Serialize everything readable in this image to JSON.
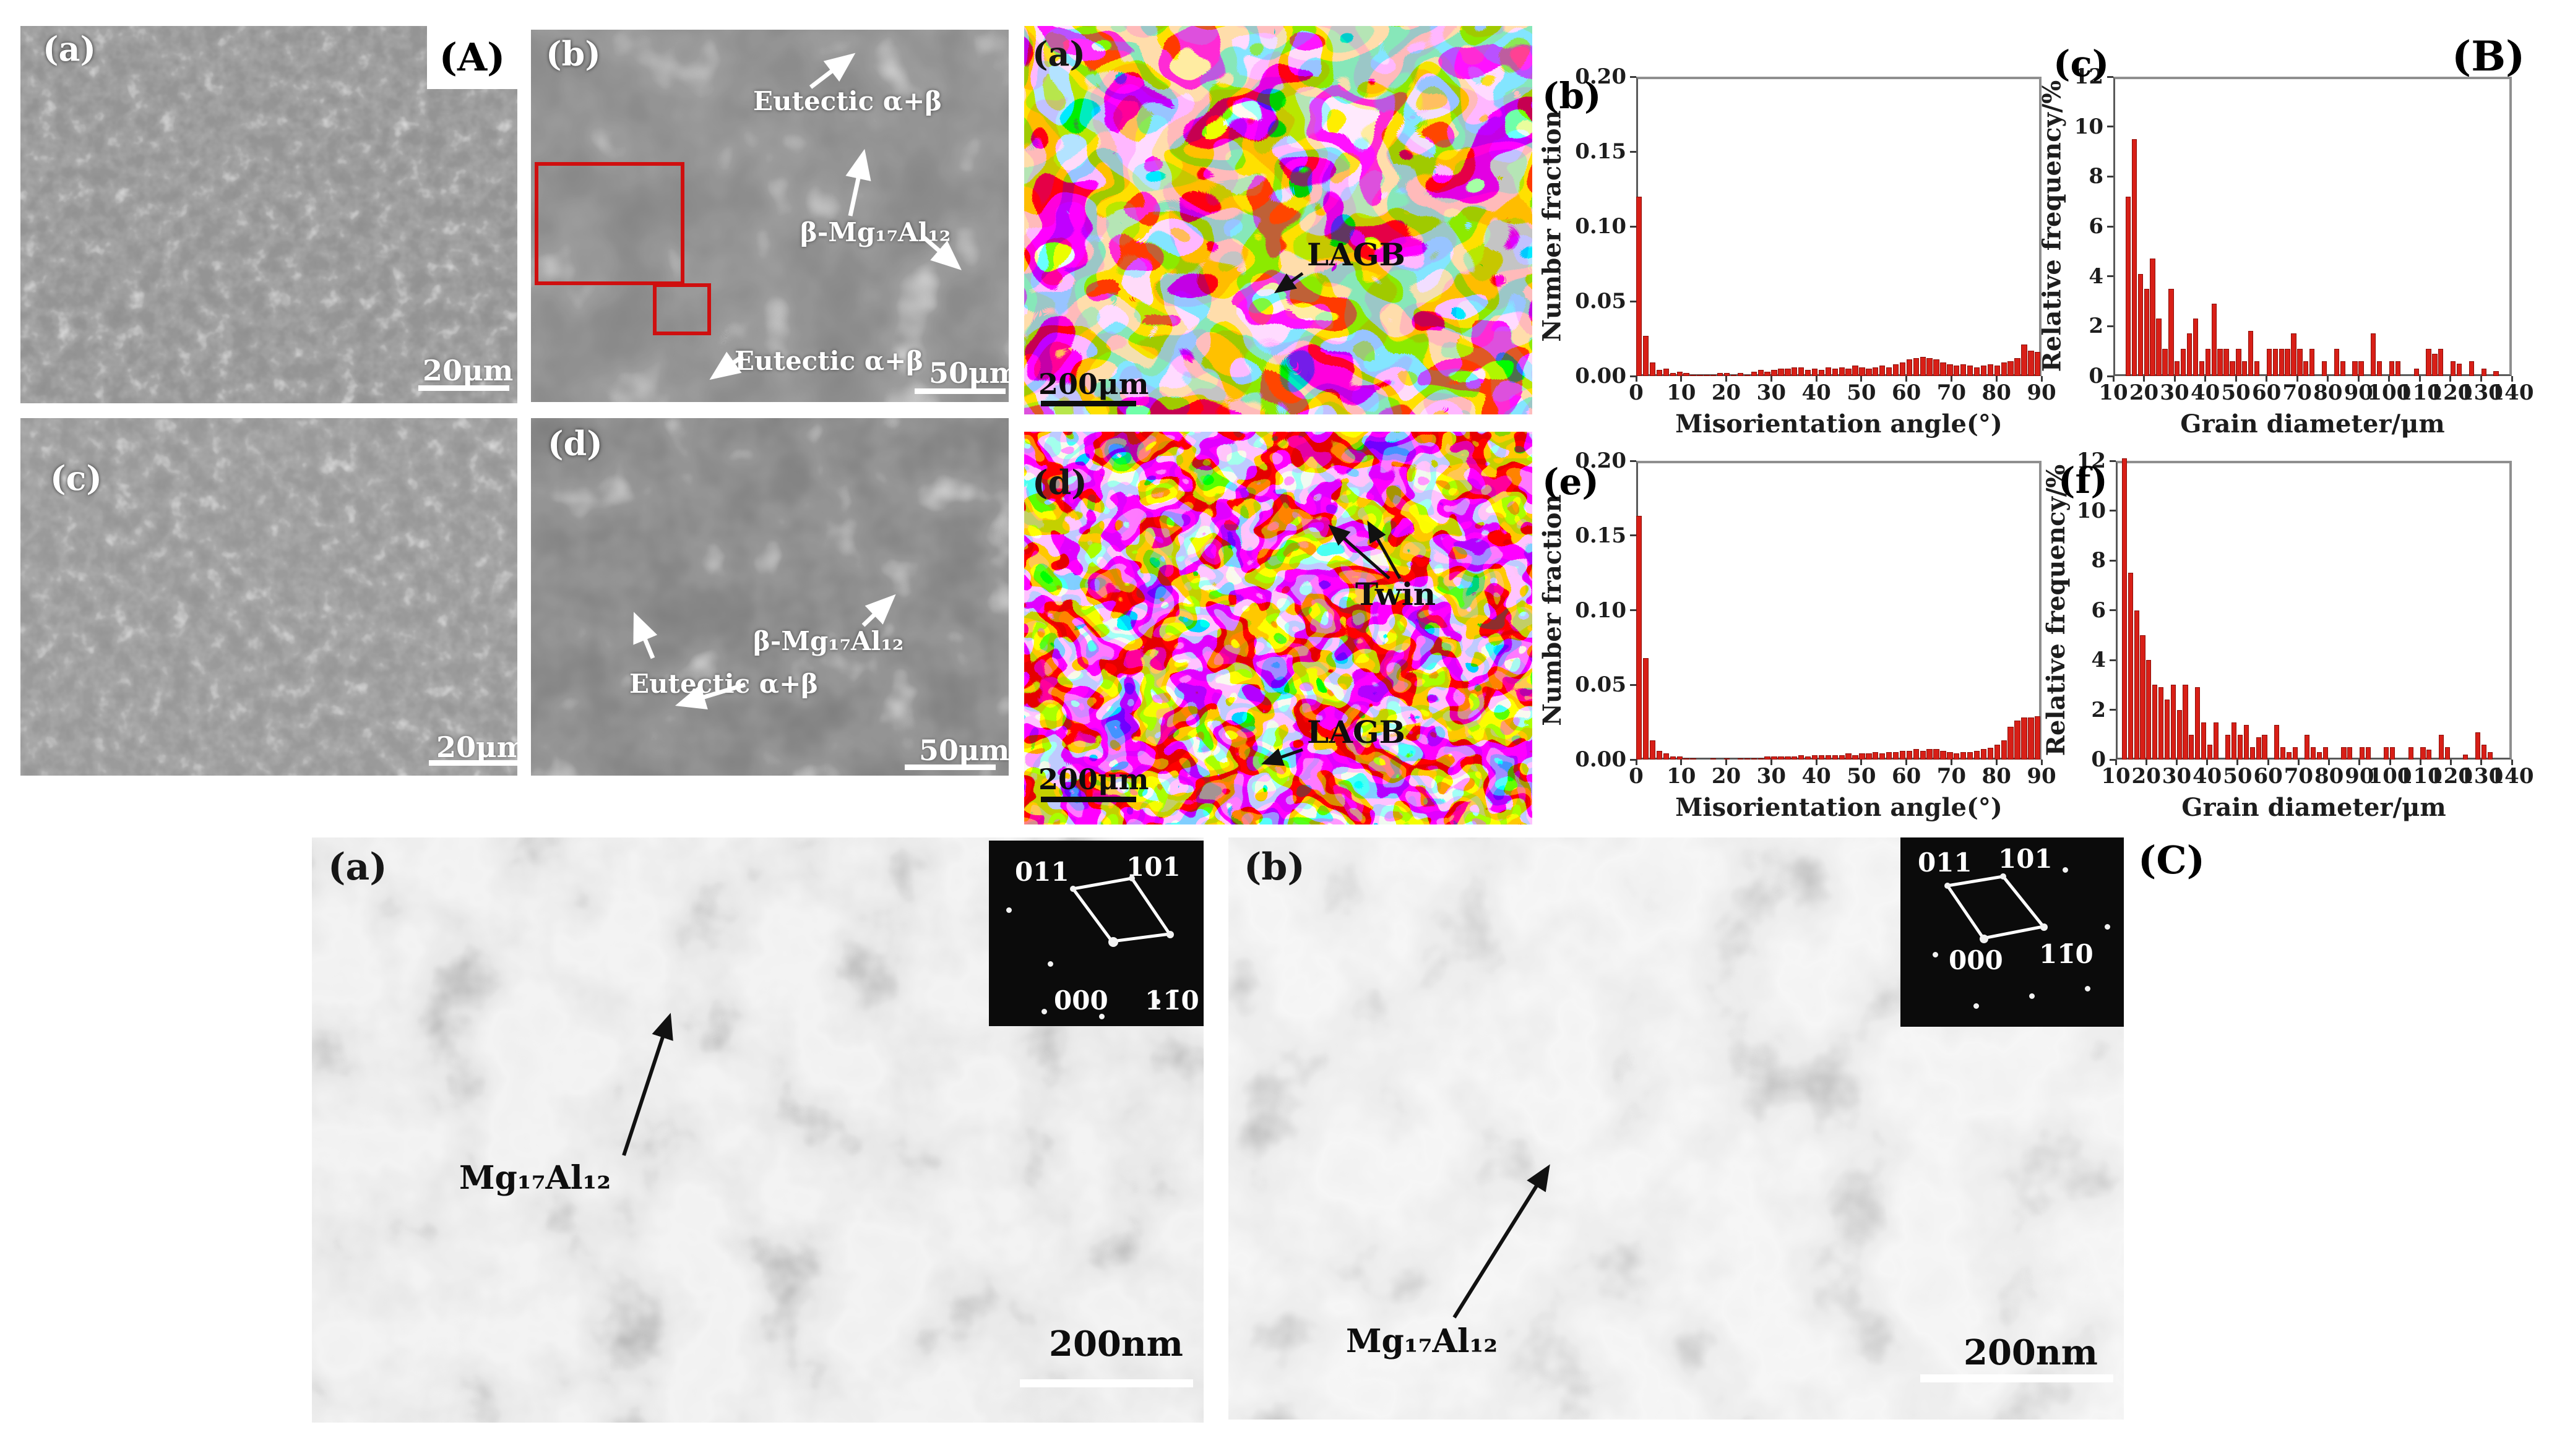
{
  "groups": {
    "A": "(A)",
    "B": "(B)",
    "C": "(C)"
  },
  "colors": {
    "bar": "#d81f17",
    "bar_edge": "#8c0e08",
    "red_box": "#cf0f0f",
    "frame_gray": "#8f8f8f"
  },
  "panelA": {
    "sem_a": {
      "label": "(a)",
      "scalebar": "20μm"
    },
    "sem_b": {
      "label": "(b)",
      "scalebar": "50μm",
      "eutectic_top": "Eutectic α+β",
      "beta_phase": "β-Mg₁₇Al₁₂",
      "eutectic_bottom": "Eutectic α+β"
    },
    "sem_c": {
      "label": "(c)",
      "scalebar": "20μm"
    },
    "sem_d": {
      "label": "(d)",
      "scalebar": "50μm",
      "beta_phase": "β-Mg₁₇Al₁₂",
      "eutectic": "Eutectic α+β"
    }
  },
  "panelB": {
    "ebsd_a": {
      "label": "(a)",
      "lagb": "LAGB",
      "scalebar": "200μm"
    },
    "ebsd_d": {
      "label": "(d)",
      "twin": "Twin",
      "lagb": "LAGB",
      "scalebar": "200μm"
    }
  },
  "panelC": {
    "tem_a": {
      "label": "(a)",
      "phase": "Mg₁₇Al₁₂",
      "scalebar": "200nm",
      "diffraction": {
        "s011": "011",
        "s101": "101",
        "s000": "000",
        "s110": "11̄0"
      }
    },
    "tem_b": {
      "label": "(b)",
      "phase": "Mg₁₇Al₁₂",
      "scalebar": "200nm",
      "diffraction": {
        "s011": "011",
        "s101": "101",
        "s000": "000",
        "s110": "11̄0"
      }
    }
  },
  "chart_data": [
    {
      "id": "b",
      "type": "bar",
      "panel_label": "(b)",
      "ylabel": "Number fraction",
      "xlabel": "Misorientation angle(°)",
      "xlim": [
        0,
        90
      ],
      "ylim": [
        0,
        0.2
      ],
      "grid": false,
      "legend": null,
      "xtick_labels": [
        "0",
        "10",
        "20",
        "30",
        "40",
        "50",
        "60",
        "70",
        "80",
        "90"
      ],
      "ytick_labels": [
        "0.00",
        "0.05",
        "0.10",
        "0.15",
        "0.20"
      ],
      "bin_start": 0,
      "bin_width": 1.5,
      "values": [
        0.12,
        0.027,
        0.009,
        0.004,
        0.005,
        0.002,
        0.003,
        0.002,
        0.001,
        0.001,
        0.001,
        0.001,
        0.002,
        0.002,
        0.001,
        0.002,
        0.001,
        0.003,
        0.004,
        0.003,
        0.004,
        0.005,
        0.005,
        0.006,
        0.006,
        0.004,
        0.005,
        0.004,
        0.006,
        0.005,
        0.006,
        0.005,
        0.007,
        0.006,
        0.005,
        0.006,
        0.007,
        0.006,
        0.008,
        0.009,
        0.011,
        0.012,
        0.013,
        0.012,
        0.011,
        0.009,
        0.008,
        0.007,
        0.008,
        0.007,
        0.006,
        0.007,
        0.008,
        0.007,
        0.009,
        0.01,
        0.012,
        0.021,
        0.017,
        0.016
      ]
    },
    {
      "id": "c",
      "type": "bar",
      "panel_label": "(c)",
      "ylabel": "Relative frequency/%",
      "xlabel": "Grain diameter/μm",
      "xlim": [
        10,
        140
      ],
      "ylim": [
        0,
        12
      ],
      "grid": false,
      "legend": null,
      "xtick_labels": [
        "10",
        "20",
        "30",
        "40",
        "50",
        "60",
        "70",
        "80",
        "90",
        "100",
        "110",
        "120",
        "130",
        "140"
      ],
      "ytick_labels": [
        "0",
        "2",
        "4",
        "6",
        "8",
        "10",
        "12"
      ],
      "bin_start": 12,
      "bin_width": 2,
      "values": [
        0.0,
        7.2,
        9.5,
        4.1,
        3.5,
        4.7,
        2.3,
        1.1,
        3.5,
        0.6,
        1.1,
        1.7,
        2.3,
        0.6,
        1.1,
        2.9,
        1.1,
        1.1,
        0.6,
        1.1,
        0.6,
        1.8,
        0.6,
        0.0,
        1.1,
        1.1,
        1.1,
        1.1,
        1.7,
        1.1,
        0.6,
        1.1,
        0.0,
        0.6,
        0.0,
        1.1,
        0.6,
        0.0,
        0.6,
        0.6,
        0.0,
        1.7,
        0.6,
        0.0,
        0.6,
        0.6,
        0.0,
        0.0,
        0.3,
        0.0,
        1.1,
        0.9,
        1.1,
        0.0,
        0.6,
        0.5,
        0.0,
        0.6,
        0.0,
        0.3,
        0.0,
        0.2,
        0.0,
        0.0
      ]
    },
    {
      "id": "e",
      "type": "bar",
      "panel_label": "(e)",
      "ylabel": "Number fraction",
      "xlabel": "Misorientation angle(°)",
      "xlim": [
        0,
        90
      ],
      "ylim": [
        0,
        0.2
      ],
      "grid": false,
      "legend": null,
      "xtick_labels": [
        "0",
        "10",
        "20",
        "30",
        "40",
        "50",
        "60",
        "70",
        "80",
        "90"
      ],
      "ytick_labels": [
        "0.00",
        "0.05",
        "0.10",
        "0.15",
        "0.20"
      ],
      "bin_start": 0,
      "bin_width": 1.5,
      "values": [
        0.163,
        0.068,
        0.013,
        0.006,
        0.004,
        0.002,
        0.002,
        0.001,
        0.001,
        0.0,
        0.0,
        0.001,
        0.0,
        0.001,
        0.0,
        0.001,
        0.001,
        0.001,
        0.001,
        0.002,
        0.002,
        0.002,
        0.002,
        0.002,
        0.003,
        0.002,
        0.003,
        0.003,
        0.003,
        0.003,
        0.003,
        0.004,
        0.003,
        0.004,
        0.004,
        0.005,
        0.004,
        0.005,
        0.005,
        0.006,
        0.006,
        0.007,
        0.006,
        0.007,
        0.007,
        0.006,
        0.005,
        0.004,
        0.005,
        0.005,
        0.006,
        0.007,
        0.008,
        0.01,
        0.013,
        0.022,
        0.026,
        0.028,
        0.028,
        0.029
      ]
    },
    {
      "id": "f",
      "type": "bar",
      "panel_label": "(f)",
      "ylabel": "Relative frequency/%",
      "xlabel": "Grain diameter/μm",
      "xlim": [
        10,
        140
      ],
      "ylim": [
        0,
        12
      ],
      "grid": false,
      "legend": null,
      "xtick_labels": [
        "10",
        "20",
        "30",
        "40",
        "50",
        "60",
        "70",
        "80",
        "90",
        "100",
        "110",
        "120",
        "130",
        "140"
      ],
      "ytick_labels": [
        "0",
        "2",
        "4",
        "6",
        "8",
        "10",
        "12"
      ],
      "bin_start": 12,
      "bin_width": 2,
      "values": [
        12.1,
        7.5,
        6.0,
        5.0,
        4.0,
        3.0,
        2.9,
        2.4,
        3.0,
        2.0,
        3.0,
        1.0,
        2.9,
        1.5,
        0.6,
        1.5,
        0.0,
        1.0,
        1.5,
        1.0,
        1.4,
        0.5,
        0.9,
        1.0,
        0.0,
        1.4,
        0.5,
        0.3,
        0.5,
        0.0,
        1.0,
        0.5,
        0.3,
        0.5,
        0.0,
        0.0,
        0.5,
        0.5,
        0.0,
        0.5,
        0.5,
        0.0,
        0.0,
        0.5,
        0.5,
        0.0,
        0.0,
        0.5,
        0.0,
        0.5,
        0.4,
        0.0,
        1.0,
        0.5,
        0.0,
        0.0,
        0.2,
        0.0,
        1.1,
        0.6,
        0.3,
        0.0,
        0.0,
        0.0
      ]
    }
  ]
}
